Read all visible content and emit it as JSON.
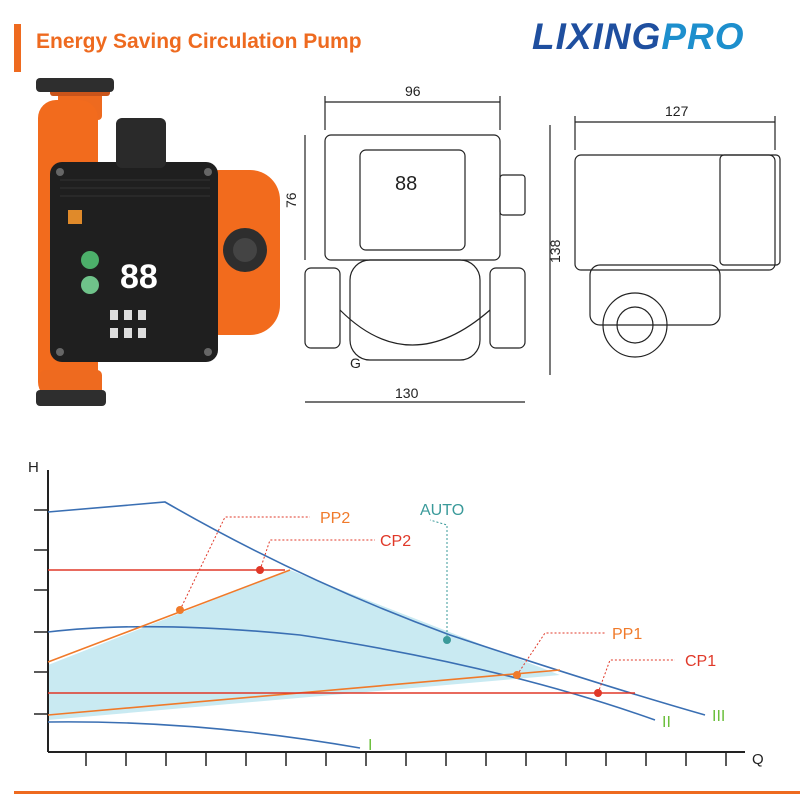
{
  "header": {
    "title": "Energy Saving Circulation Pump",
    "logo_text": "LIXINGPRO",
    "logo_part1": "LIXING",
    "logo_part2": "PRO"
  },
  "product_photo": {
    "display": "88",
    "icon": "pump-photo"
  },
  "technical_drawing": {
    "dim_width_top": "96",
    "dim_height_left": "76",
    "dim_height_right": "138",
    "dim_width_bottom": "130",
    "dim_side_width": "127",
    "thread_label": "G",
    "display": "88"
  },
  "performance_chart": {
    "axis_y_label": "H",
    "axis_x_label": "Q",
    "curve_labels": {
      "I": "I",
      "II": "II",
      "III": "III",
      "PP1": "PP1",
      "PP2": "PP2",
      "CP1": "CP1",
      "CP2": "CP2",
      "AUTO": "AUTO"
    },
    "colors": {
      "curve": "#3a6fb3",
      "pp": "#f07a2a",
      "cp": "#e03828",
      "auto_fill": "#bfe6f0",
      "roman": "#6abf3a",
      "axis": "#222222",
      "auto_label": "#3a9a9a"
    }
  },
  "theme": {
    "accent": "#ee6a1f",
    "brand_blue": "#1f4f9f"
  }
}
